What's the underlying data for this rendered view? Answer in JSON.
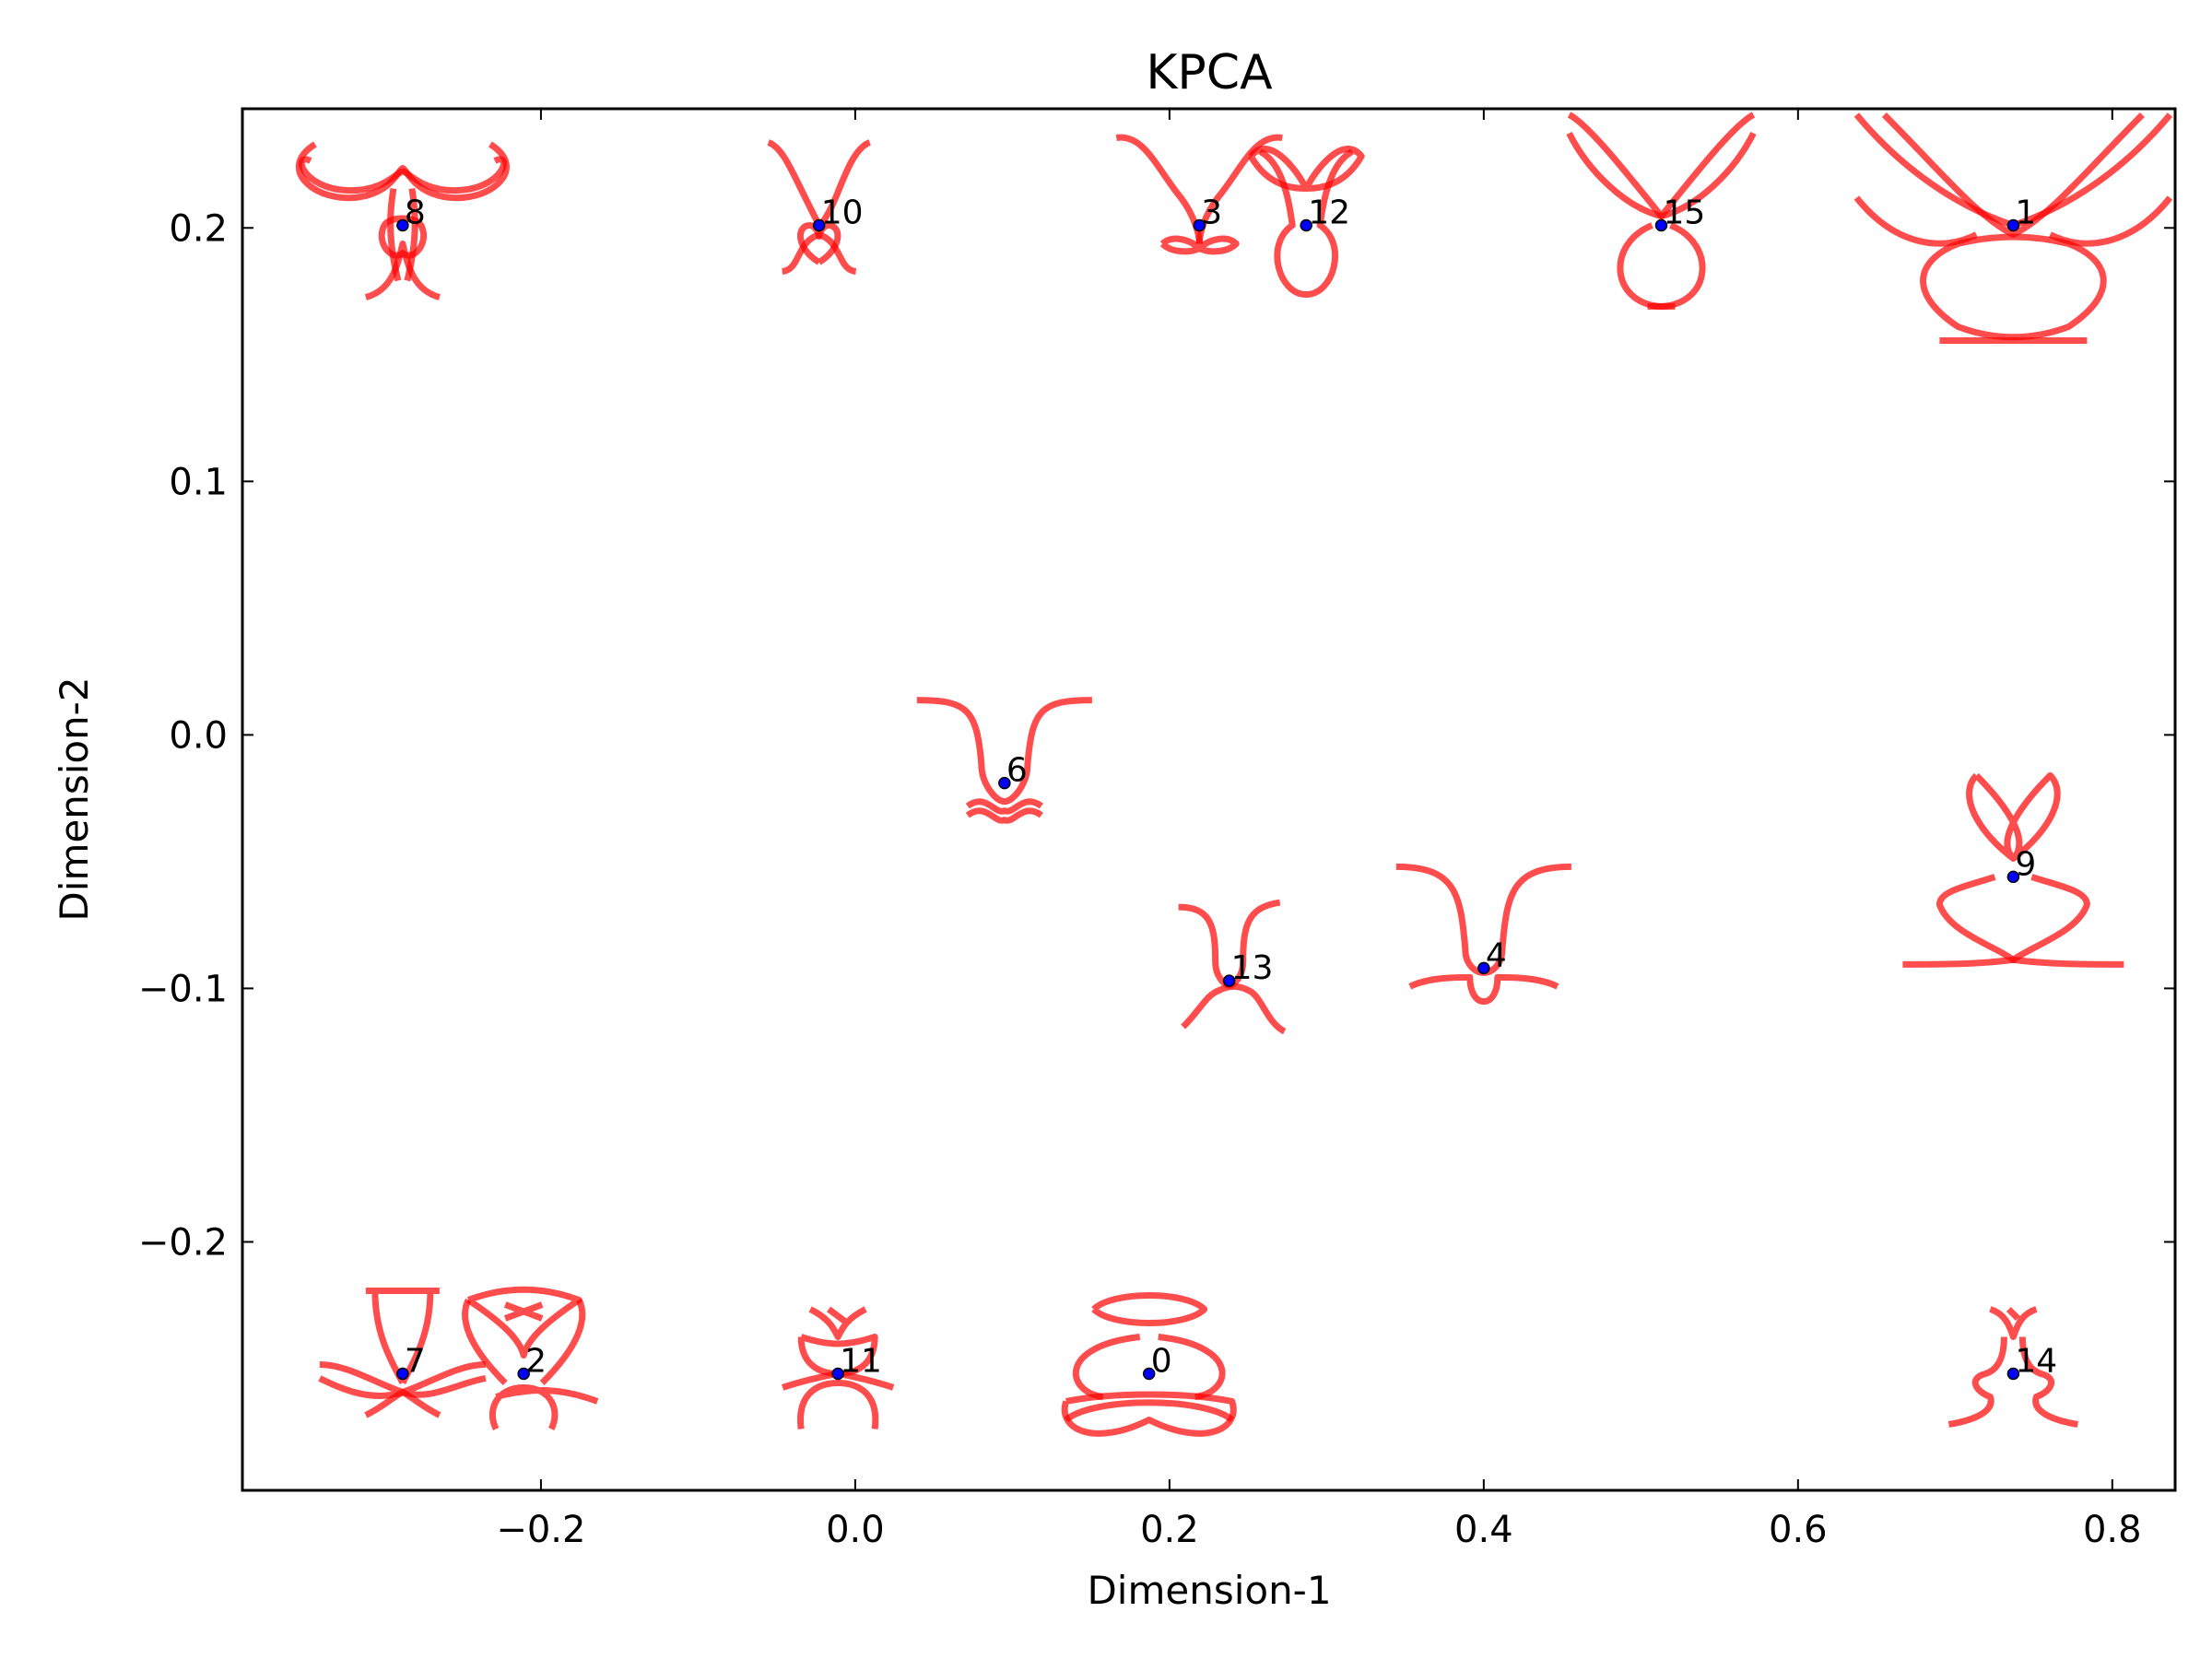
{
  "chart_data": {
    "type": "scatter",
    "title": "KPCA",
    "xlabel": "Dimension-1",
    "ylabel": "Dimension-2",
    "xlim": [
      -0.39,
      0.84
    ],
    "ylim": [
      -0.298,
      0.247
    ],
    "xticks": [
      -0.2,
      0.0,
      0.2,
      0.4,
      0.6,
      0.8
    ],
    "xtick_labels": [
      "−0.2",
      "0.0",
      "0.2",
      "0.4",
      "0.6",
      "0.8"
    ],
    "yticks": [
      0.2,
      0.1,
      0.0,
      -0.1,
      -0.2
    ],
    "ytick_labels": [
      "0.2",
      "0.1",
      "0.0",
      "−0.1",
      "−0.2"
    ],
    "grid": false,
    "legend": "none",
    "marker_color": "#0000ff",
    "glyph_color": "#ff0000",
    "points": [
      {
        "label": "0",
        "x": 0.187,
        "y": -0.252,
        "glyph": "loops-bottom"
      },
      {
        "label": "1",
        "x": 0.737,
        "y": 0.201,
        "glyph": "big-cross"
      },
      {
        "label": "2",
        "x": -0.211,
        "y": -0.252,
        "glyph": "heart"
      },
      {
        "label": "3",
        "x": 0.219,
        "y": 0.201,
        "glyph": "v-knot"
      },
      {
        "label": "4",
        "x": 0.4,
        "y": -0.092,
        "glyph": "funnel"
      },
      {
        "label": "6",
        "x": 0.095,
        "y": -0.019,
        "glyph": "funnel-wide"
      },
      {
        "label": "7",
        "x": -0.288,
        "y": -0.252,
        "glyph": "bowtie"
      },
      {
        "label": "8",
        "x": -0.288,
        "y": 0.201,
        "glyph": "wings"
      },
      {
        "label": "9",
        "x": 0.737,
        "y": -0.056,
        "glyph": "cross-loop"
      },
      {
        "label": "10",
        "x": -0.023,
        "y": 0.201,
        "glyph": "v-heart"
      },
      {
        "label": "11",
        "x": -0.011,
        "y": -0.252,
        "glyph": "small-loop"
      },
      {
        "label": "12",
        "x": 0.287,
        "y": 0.201,
        "glyph": "drop"
      },
      {
        "label": "13",
        "x": 0.238,
        "y": -0.097,
        "glyph": "funnel-small"
      },
      {
        "label": "14",
        "x": 0.737,
        "y": -0.252,
        "glyph": "stem"
      },
      {
        "label": "15",
        "x": 0.513,
        "y": 0.201,
        "glyph": "x-drop"
      }
    ]
  }
}
